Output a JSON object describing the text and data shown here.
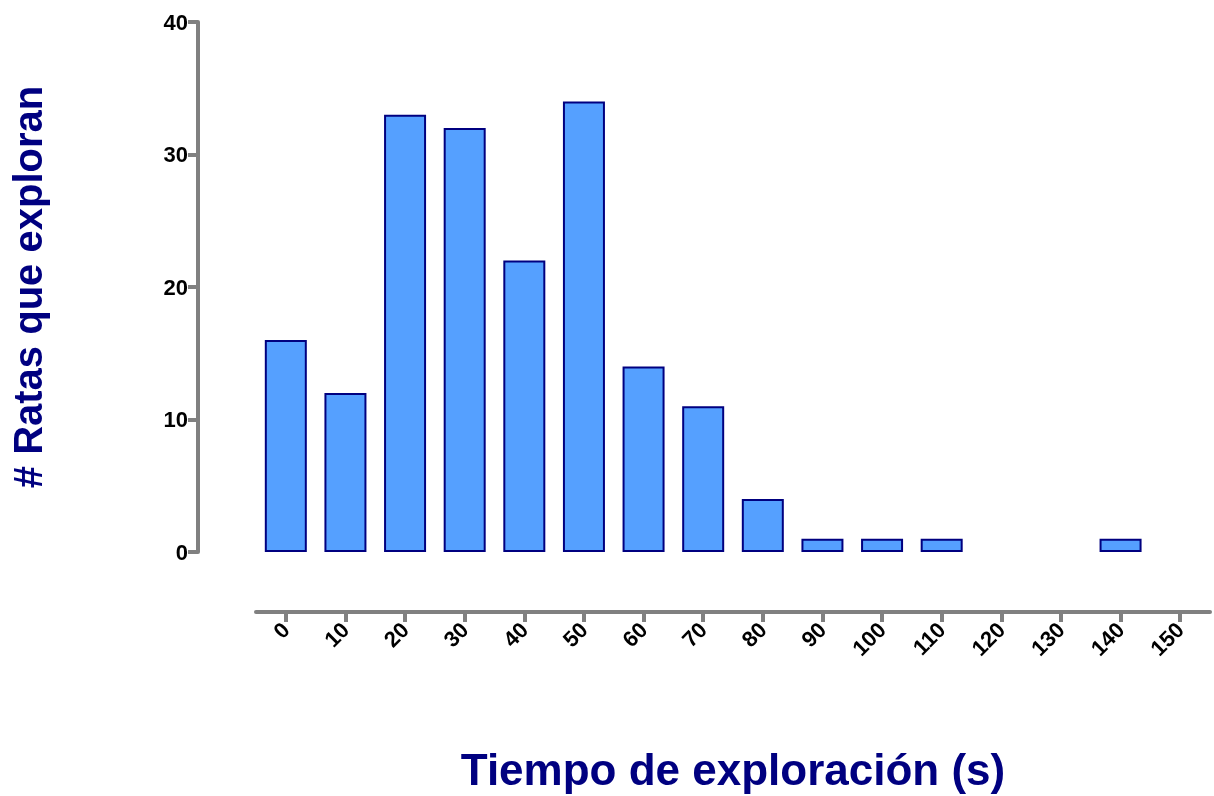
{
  "chart_data": {
    "type": "bar",
    "xlabel": "Tiempo de exploración (s)",
    "ylabel": "# Ratas que exploran",
    "categories": [
      "0",
      "10",
      "20",
      "30",
      "40",
      "50",
      "60",
      "70",
      "80",
      "90",
      "100",
      "110",
      "120",
      "130",
      "140",
      "150"
    ],
    "values": [
      16,
      12,
      33,
      32,
      22,
      34,
      14,
      11,
      4,
      1,
      1,
      1,
      null,
      null,
      1,
      null
    ],
    "color": "#55a0ff",
    "ylim": [
      0,
      40
    ],
    "yticks": [
      0,
      10,
      20,
      30,
      40
    ]
  }
}
